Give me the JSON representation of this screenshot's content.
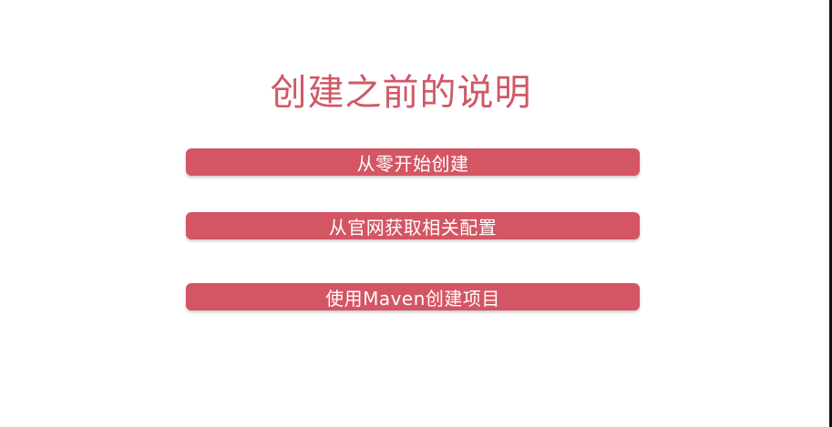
{
  "slide": {
    "title": "创建之前的说明",
    "items": [
      {
        "label": "从零开始创建"
      },
      {
        "label": "从官网获取相关配置"
      },
      {
        "label": "使用Maven创建项目"
      }
    ]
  },
  "colors": {
    "accent": "#d45563",
    "title_text": "#d05865",
    "bar_text": "#ffffff",
    "background": "#ffffff"
  }
}
